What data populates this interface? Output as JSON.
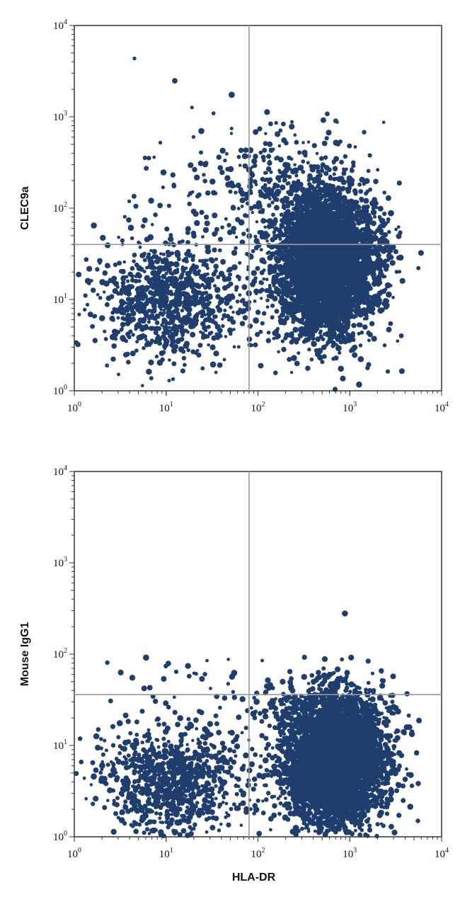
{
  "colors": {
    "density": "#1f3e6e",
    "frame": "#333333",
    "gate": "#9a9a9a"
  },
  "chart_data": [
    {
      "type": "scatter",
      "title": "",
      "xlabel": "",
      "ylabel": "CLEC9a",
      "x_scale": "log",
      "y_scale": "log",
      "xlim": [
        1,
        10000
      ],
      "ylim": [
        1,
        10000
      ],
      "x_ticks": [
        {
          "base": "10",
          "exp": "0"
        },
        {
          "base": "10",
          "exp": "1"
        },
        {
          "base": "10",
          "exp": "2"
        },
        {
          "base": "10",
          "exp": "3"
        },
        {
          "base": "10",
          "exp": "4"
        }
      ],
      "y_ticks": [
        {
          "base": "10",
          "exp": "0"
        },
        {
          "base": "10",
          "exp": "1"
        },
        {
          "base": "10",
          "exp": "2"
        },
        {
          "base": "10",
          "exp": "3"
        },
        {
          "base": "10",
          "exp": "4"
        }
      ],
      "quadrant_gate": {
        "x": 80,
        "y": 40
      },
      "populations": [
        {
          "center_x": 550,
          "center_y": 25,
          "spread_log_x": 0.28,
          "spread_log_y": 0.38,
          "points": 4200
        },
        {
          "center_x": 12,
          "center_y": 10,
          "spread_log_x": 0.42,
          "spread_log_y": 0.32,
          "points": 900
        },
        {
          "center_x": 200,
          "center_y": 150,
          "spread_log_x": 0.45,
          "spread_log_y": 0.35,
          "points": 350
        },
        {
          "center_x": 40,
          "center_y": 200,
          "spread_log_x": 0.55,
          "spread_log_y": 0.45,
          "points": 60
        }
      ]
    },
    {
      "type": "scatter",
      "title": "",
      "xlabel": "HLA-DR",
      "ylabel": "Mouse IgG1",
      "x_scale": "log",
      "y_scale": "log",
      "xlim": [
        1,
        10000
      ],
      "ylim": [
        1,
        10000
      ],
      "x_ticks": [
        {
          "base": "10",
          "exp": "0"
        },
        {
          "base": "10",
          "exp": "1"
        },
        {
          "base": "10",
          "exp": "2"
        },
        {
          "base": "10",
          "exp": "3"
        },
        {
          "base": "10",
          "exp": "4"
        }
      ],
      "y_ticks": [
        {
          "base": "10",
          "exp": "0"
        },
        {
          "base": "10",
          "exp": "1"
        },
        {
          "base": "10",
          "exp": "2"
        },
        {
          "base": "10",
          "exp": "3"
        },
        {
          "base": "10",
          "exp": "4"
        }
      ],
      "quadrant_gate": {
        "x": 80,
        "y": 36
      },
      "populations": [
        {
          "center_x": 700,
          "center_y": 7,
          "spread_log_x": 0.28,
          "spread_log_y": 0.35,
          "points": 4500
        },
        {
          "center_x": 12,
          "center_y": 4,
          "spread_log_x": 0.42,
          "spread_log_y": 0.3,
          "points": 900
        },
        {
          "center_x": 300,
          "center_y": 30,
          "spread_log_x": 0.4,
          "spread_log_y": 0.12,
          "points": 120
        },
        {
          "center_x": 20,
          "center_y": 60,
          "spread_log_x": 0.4,
          "spread_log_y": 0.12,
          "points": 25
        }
      ]
    }
  ]
}
